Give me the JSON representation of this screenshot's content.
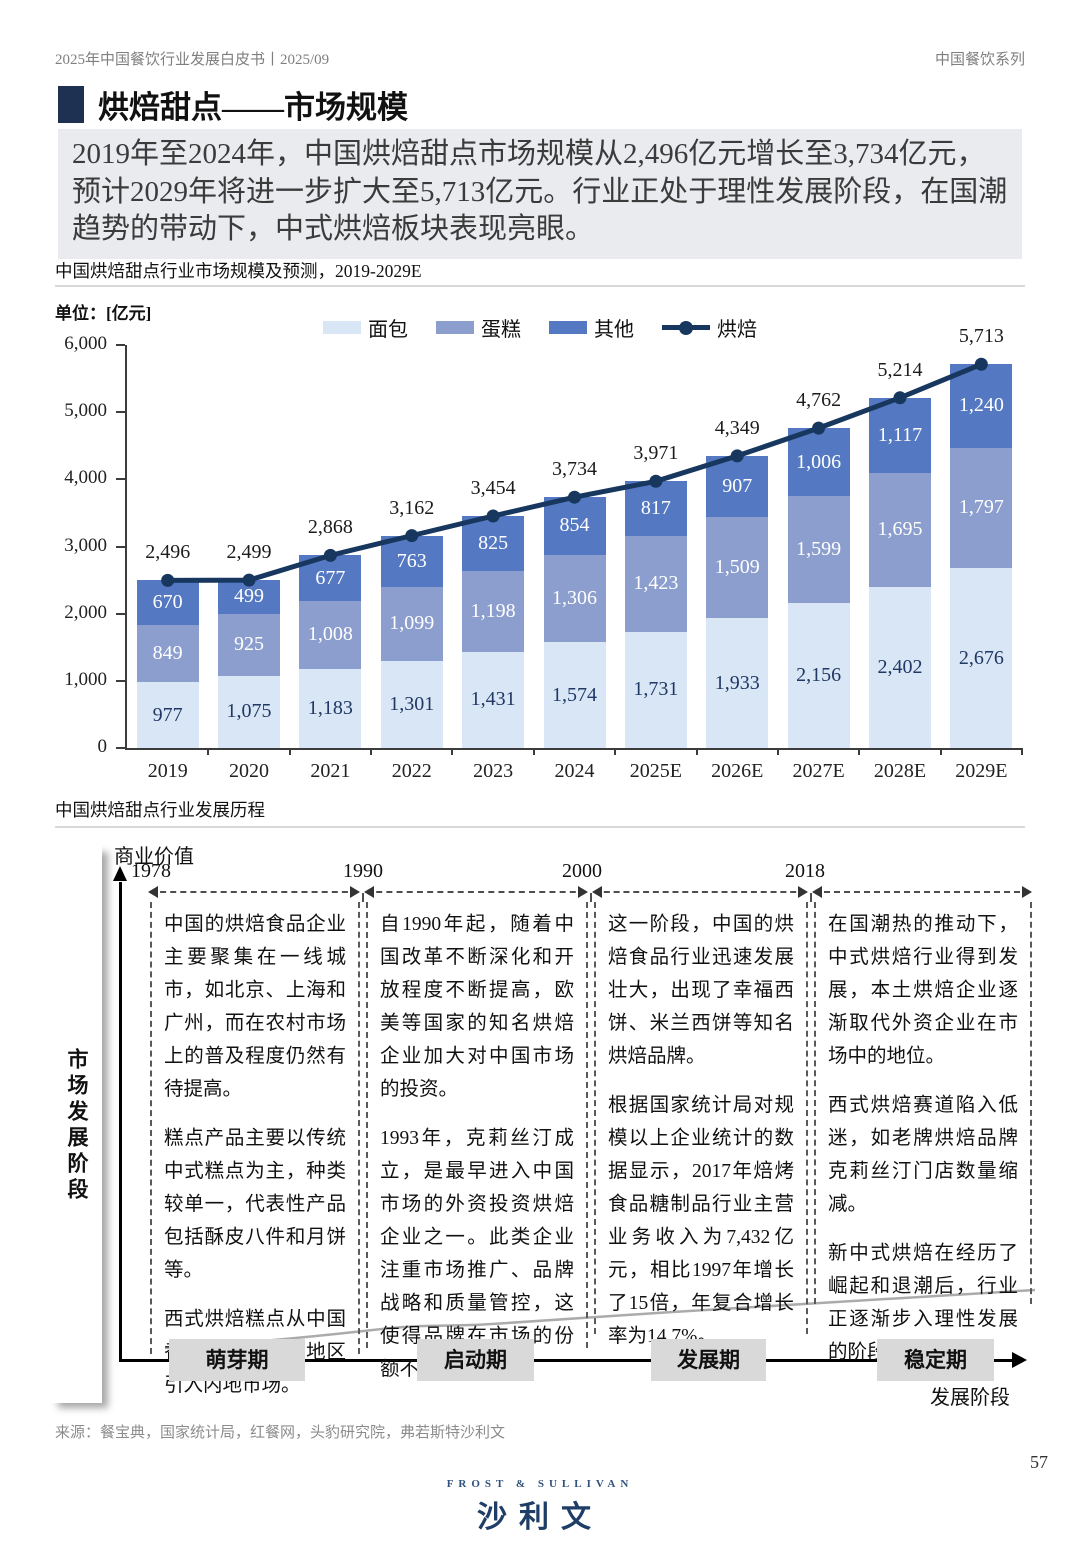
{
  "header": {
    "left": "2025年中国餐饮行业发展白皮书丨2025/09",
    "right": "中国餐饮系列"
  },
  "title": "烘焙甜点——市场规模",
  "summary": "2019年至2024年，中国烘焙甜点市场规模从2,496亿元增长至3,734亿元，预计2029年将进一步扩大至5,713亿元。行业正处于理性发展阶段，在国潮趋势的带动下，中式烘焙板块表现亮眼。",
  "chart": {
    "title": "中国烘焙甜点行业市场规模及预测，2019-2029E",
    "unit": "单位：[亿元]"
  },
  "chart_data": {
    "type": "bar",
    "stacked": true,
    "title": "中国烘焙甜点行业市场规模及预测，2019-2029E",
    "unit": "亿元",
    "categories": [
      "2019",
      "2020",
      "2021",
      "2022",
      "2023",
      "2024",
      "2025E",
      "2026E",
      "2027E",
      "2028E",
      "2029E"
    ],
    "series": [
      {
        "name": "面包",
        "type": "bar",
        "color": "#d9e6f5",
        "label_color": "#1f3864",
        "values": [
          977,
          1075,
          1183,
          1301,
          1431,
          1574,
          1731,
          1933,
          2156,
          2402,
          2676
        ]
      },
      {
        "name": "蛋糕",
        "type": "bar",
        "color": "#8c9ecd",
        "label_color": "#ffffff",
        "values": [
          849,
          925,
          1008,
          1099,
          1198,
          1306,
          1423,
          1509,
          1599,
          1695,
          1797
        ]
      },
      {
        "name": "其他",
        "type": "bar",
        "color": "#5478c1",
        "label_color": "#ffffff",
        "values": [
          670,
          499,
          677,
          763,
          825,
          854,
          817,
          907,
          1006,
          1117,
          1240
        ]
      },
      {
        "name": "烘焙",
        "type": "line",
        "color": "#17375f",
        "values": [
          2496,
          2499,
          2868,
          3162,
          3454,
          3734,
          3971,
          4349,
          4762,
          5214,
          5713
        ]
      }
    ],
    "ylim": [
      0,
      6000
    ],
    "yticks": [
      0,
      1000,
      2000,
      3000,
      4000,
      5000,
      6000
    ],
    "legend_position": "top",
    "grid": false
  },
  "timeline": {
    "section_title": "中国烘焙甜点行业发展历程",
    "y_axis_label": "商业价值",
    "x_axis_label": "发展阶段",
    "side_label": "市场发展阶段",
    "eras": [
      {
        "year": "1978",
        "phase": "萌芽期",
        "paragraphs": [
          "中国的烘焙食品企业主要聚集在一线城市，如北京、上海和广州，而在农村市场上的普及程度仍然有待提高。",
          "糕点产品主要以传统中式糕点为主，种类较单一，代表性产品包括酥皮八件和月饼等。",
          "西式烘焙糕点从中国香港和中国台湾地区引入内地市场。"
        ]
      },
      {
        "year": "1990",
        "phase": "启动期",
        "paragraphs": [
          "自1990年起，随着中国改革不断深化和开放程度不断提高，欧美等国家的知名烘焙企业加大对中国市场的投资。",
          "1993年，克莉丝汀成立，是最早进入中国市场的外资投资烘焙企业之一。此类企业注重市场推广、品牌战略和质量管控，这使得品牌在市场的份额不断增加。"
        ]
      },
      {
        "year": "2000",
        "phase": "发展期",
        "paragraphs": [
          "这一阶段，中国的烘焙食品行业迅速发展壮大，出现了幸福西饼、米兰西饼等知名烘焙品牌。",
          "根据国家统计局对规模以上企业统计的数据显示，2017年焙烤食品糖制品行业主营业务收入为7,432亿元，相比1997年增长了15倍，年复合增长率为14.7%。"
        ]
      },
      {
        "year": "2018",
        "phase": "稳定期",
        "paragraphs": [
          "在国潮热的推动下，中式烘焙行业得到发展，本土烘焙企业逐渐取代外资企业在市场中的地位。",
          "西式烘焙赛道陷入低迷，如老牌烘焙品牌克莉丝汀门店数量缩减。",
          "新中式烘焙在经历了崛起和退潮后，行业正逐渐步入理性发展的阶段。"
        ]
      }
    ]
  },
  "source": "来源：餐宝典，国家统计局，红餐网，头豹研究院，弗若斯特沙利文",
  "footer": {
    "logo_top": "FROST & SULLIVAN",
    "logo_main": "沙利文",
    "page_number": "57"
  }
}
